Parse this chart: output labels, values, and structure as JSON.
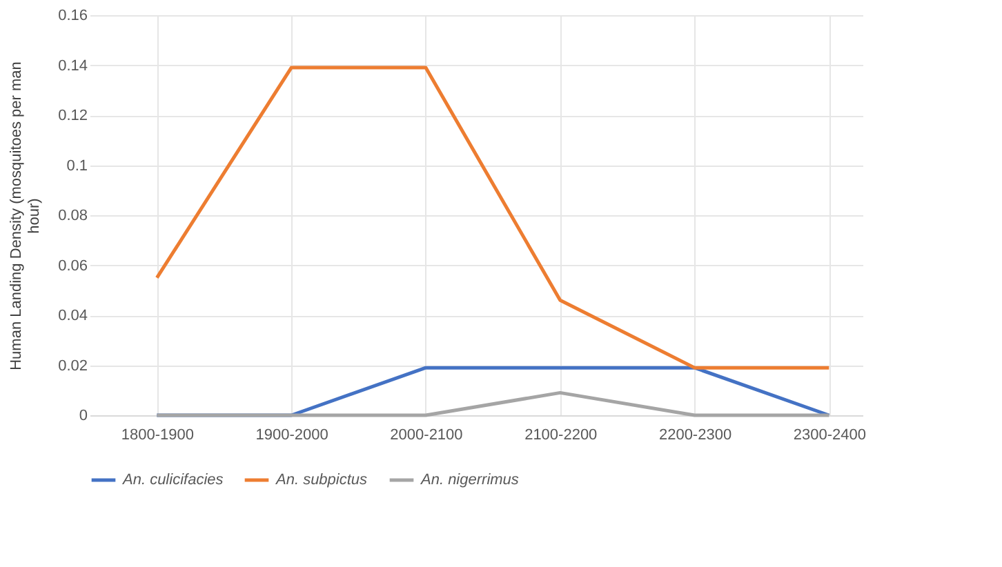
{
  "chart_data": {
    "type": "line",
    "ylabel": "Human Landing Density (mosquitoes per man hour)",
    "categories": [
      "1800-1900",
      "1900-2000",
      "2000-2100",
      "2100-2200",
      "2200-2300",
      "2300-2400"
    ],
    "series": [
      {
        "name": "An. culicifacies",
        "color": "#4472c4",
        "values": [
          0,
          0,
          0.019,
          0.019,
          0.019,
          0
        ]
      },
      {
        "name": "An. subpictus",
        "color": "#ed7d31",
        "values": [
          0.055,
          0.139,
          0.139,
          0.046,
          0.019,
          0.019
        ]
      },
      {
        "name": "An. nigerrimus",
        "color": "#a5a5a5",
        "values": [
          0,
          0,
          0,
          0.009,
          0,
          0
        ]
      }
    ],
    "ylim": [
      0,
      0.16
    ],
    "yticks": [
      0,
      0.02,
      0.04,
      0.06,
      0.08,
      0.1,
      0.12,
      0.14,
      0.16
    ],
    "grid": true,
    "legend": "bottom",
    "marker": "none",
    "line_style": "solid"
  }
}
